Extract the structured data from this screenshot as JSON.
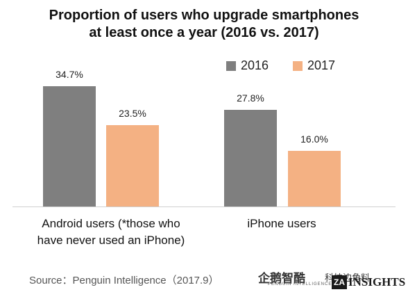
{
  "chart_data": {
    "type": "bar",
    "title_lines": [
      "Proportion of users who upgrade smartphones",
      "at least once a year (2016 vs. 2017)"
    ],
    "categories": [
      [
        "Android users (*those who",
        "have never used an iPhone)"
      ],
      [
        "iPhone users"
      ]
    ],
    "series": [
      {
        "name": "2016",
        "color": "#7f7f7f",
        "values": [
          34.7,
          27.8
        ],
        "labels": [
          "34.7%",
          "27.8%"
        ]
      },
      {
        "name": "2017",
        "color": "#f4b183",
        "values": [
          23.5,
          16.0
        ],
        "labels": [
          "23.5%",
          "16.0%"
        ]
      }
    ],
    "ylim": [
      0,
      40
    ],
    "grid": false,
    "legend_position": "top-right"
  },
  "footer": {
    "source": "Source：Penguin Intelligence（2017.9）",
    "logo_penguin": "企鹅智酷",
    "logo_penguin_sub": "PENGUIN INTELLIGENCE",
    "logo_wechat": "科技边角料",
    "logo_insights_mark": "ZA",
    "logo_insights": "INSIGHTS"
  }
}
